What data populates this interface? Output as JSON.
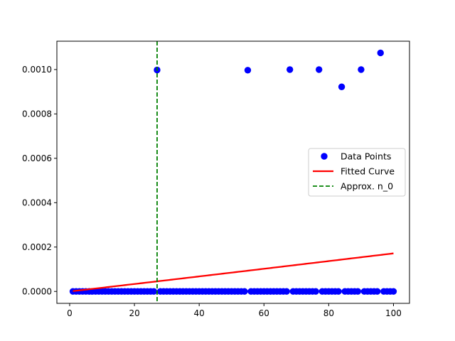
{
  "chart_data": {
    "type": "scatter",
    "title": "",
    "xlabel": "",
    "ylabel": "",
    "xlim": [
      -3.95,
      104.95
    ],
    "ylim": [
      -5.37e-05,
      0.0011277
    ],
    "xticks": [
      {
        "value": 0,
        "label": "0"
      },
      {
        "value": 20,
        "label": "20"
      },
      {
        "value": 40,
        "label": "40"
      },
      {
        "value": 60,
        "label": "60"
      },
      {
        "value": 80,
        "label": "80"
      },
      {
        "value": 100,
        "label": "100"
      }
    ],
    "yticks": [
      {
        "value": 0,
        "label": "0.0000"
      },
      {
        "value": 0.0002,
        "label": "0.0002"
      },
      {
        "value": 0.0004,
        "label": "0.0004"
      },
      {
        "value": 0.0006,
        "label": "0.0006"
      },
      {
        "value": 0.0008,
        "label": "0.0008"
      },
      {
        "value": 0.001,
        "label": "0.0010"
      }
    ],
    "grid": false,
    "legend_position": "center-right",
    "series": [
      {
        "name": "Data Points",
        "kind": "scatter",
        "color": "#0000ff",
        "points": [
          [
            1,
            0
          ],
          [
            2,
            0
          ],
          [
            3,
            0
          ],
          [
            4,
            0
          ],
          [
            5,
            0
          ],
          [
            6,
            0
          ],
          [
            7,
            0
          ],
          [
            8,
            0
          ],
          [
            9,
            0
          ],
          [
            10,
            0
          ],
          [
            11,
            0
          ],
          [
            12,
            0
          ],
          [
            13,
            0
          ],
          [
            14,
            0
          ],
          [
            15,
            0
          ],
          [
            16,
            0
          ],
          [
            17,
            0
          ],
          [
            18,
            0
          ],
          [
            19,
            0
          ],
          [
            20,
            0
          ],
          [
            21,
            0
          ],
          [
            22,
            0
          ],
          [
            23,
            0
          ],
          [
            24,
            0
          ],
          [
            25,
            0
          ],
          [
            26,
            0
          ],
          [
            27,
            0.000998
          ],
          [
            28,
            0
          ],
          [
            29,
            0
          ],
          [
            30,
            0
          ],
          [
            31,
            0
          ],
          [
            32,
            0
          ],
          [
            33,
            0
          ],
          [
            34,
            0
          ],
          [
            35,
            0
          ],
          [
            36,
            0
          ],
          [
            37,
            0
          ],
          [
            38,
            0
          ],
          [
            39,
            0
          ],
          [
            40,
            0
          ],
          [
            41,
            0
          ],
          [
            42,
            0
          ],
          [
            43,
            0
          ],
          [
            44,
            0
          ],
          [
            45,
            0
          ],
          [
            46,
            0
          ],
          [
            47,
            0
          ],
          [
            48,
            0
          ],
          [
            49,
            0
          ],
          [
            50,
            0
          ],
          [
            51,
            0
          ],
          [
            52,
            0
          ],
          [
            53,
            0
          ],
          [
            54,
            0
          ],
          [
            55,
            0.000997
          ],
          [
            56,
            0
          ],
          [
            57,
            0
          ],
          [
            58,
            0
          ],
          [
            59,
            0
          ],
          [
            60,
            0
          ],
          [
            61,
            0
          ],
          [
            62,
            0
          ],
          [
            63,
            0
          ],
          [
            64,
            0
          ],
          [
            65,
            0
          ],
          [
            66,
            0
          ],
          [
            67,
            0
          ],
          [
            68,
            0.001
          ],
          [
            69,
            0
          ],
          [
            70,
            0
          ],
          [
            71,
            0
          ],
          [
            72,
            0
          ],
          [
            73,
            0
          ],
          [
            74,
            0
          ],
          [
            75,
            0
          ],
          [
            76,
            0
          ],
          [
            77,
            0.001
          ],
          [
            78,
            0
          ],
          [
            79,
            0
          ],
          [
            80,
            0
          ],
          [
            81,
            0
          ],
          [
            82,
            0
          ],
          [
            83,
            0
          ],
          [
            84,
            0.000922
          ],
          [
            85,
            0
          ],
          [
            86,
            0
          ],
          [
            87,
            0
          ],
          [
            88,
            0
          ],
          [
            89,
            0
          ],
          [
            90,
            0.001
          ],
          [
            91,
            0
          ],
          [
            92,
            0
          ],
          [
            93,
            0
          ],
          [
            94,
            0
          ],
          [
            95,
            0
          ],
          [
            96,
            0.001075
          ],
          [
            97,
            0
          ],
          [
            98,
            0
          ],
          [
            99,
            0
          ],
          [
            100,
            0
          ]
        ]
      },
      {
        "name": "Fitted Curve",
        "kind": "line",
        "color": "#ff0000",
        "curve": {
          "form": "a*x^b",
          "a": 1.6e-06,
          "b": 1.015,
          "x_from": 1,
          "x_to": 100
        }
      },
      {
        "name": "Approx. n_0",
        "kind": "vline",
        "color": "#008000",
        "dash": "dashed",
        "x": 27
      }
    ]
  }
}
